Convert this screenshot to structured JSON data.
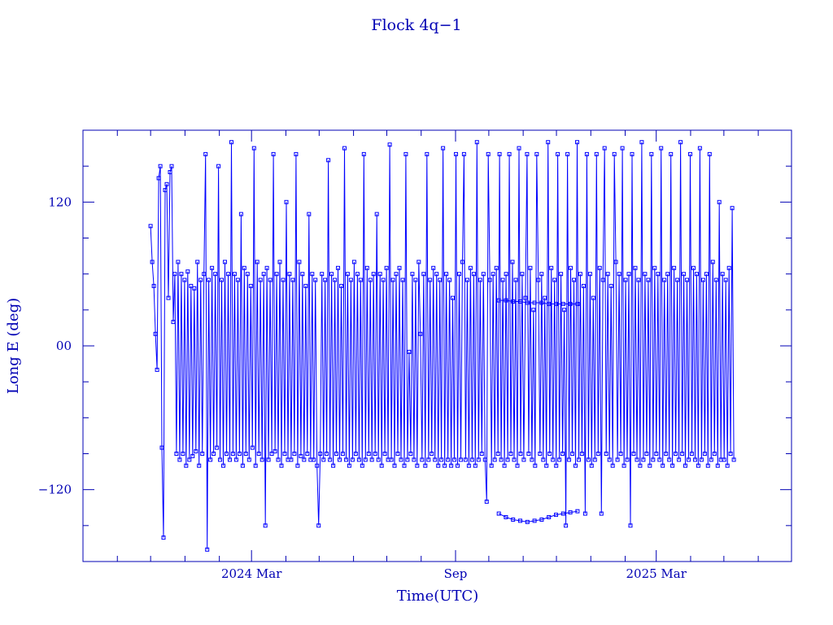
{
  "chart_data": {
    "type": "line",
    "title": "Flock 4q−1",
    "xlabel": "Time(UTC)",
    "ylabel": "Long E (deg)",
    "x_ticks": [
      {
        "date": "2024-03-01",
        "label": "2024 Mar"
      },
      {
        "date": "2024-09-01",
        "label": "Sep"
      },
      {
        "date": "2025-03-01",
        "label": "2025 Mar"
      }
    ],
    "y_ticks": [
      {
        "value": 120,
        "label": "120"
      },
      {
        "value": 0,
        "label": "00"
      },
      {
        "value": -120,
        "label": "−120"
      }
    ],
    "xlim": [
      "2023-10-01",
      "2025-07-01"
    ],
    "ylim": [
      -180,
      180
    ],
    "grid": false,
    "marker": "square",
    "series": [
      {
        "color": "#0000ff",
        "x_start": "2023-12-01",
        "x_end": "2025-05-10",
        "y_samples": [
          100,
          70,
          50,
          10,
          -20,
          140,
          150,
          -85,
          -160,
          130,
          135,
          40,
          145,
          150,
          20,
          60,
          -90,
          70,
          -95,
          60,
          -90,
          55,
          -100,
          62,
          -95,
          50,
          -92,
          48,
          -88,
          70,
          -100,
          55,
          -90,
          60,
          160,
          -170,
          55,
          -95,
          65,
          -90,
          60,
          -85,
          150,
          -95,
          55,
          -100,
          70,
          -90,
          60,
          -95,
          170,
          -90,
          60,
          -95,
          55,
          -90,
          110,
          -100,
          65,
          -90,
          60,
          -95,
          50,
          -85,
          165,
          -100,
          70,
          -90,
          55,
          -95,
          60,
          -150,
          65,
          -95,
          55,
          -90,
          160,
          -88,
          60,
          -95,
          70,
          -100,
          55,
          -90,
          120,
          -95,
          60,
          -95,
          55,
          -90,
          160,
          -100,
          70,
          -92,
          60,
          -95,
          50,
          -90,
          110,
          -95,
          60,
          -95,
          55,
          -100,
          -150,
          -90,
          60,
          -95,
          55,
          -90,
          155,
          -95,
          60,
          -100,
          55,
          -90,
          65,
          -95,
          50,
          -90,
          165,
          -95,
          60,
          -100,
          55,
          -95,
          70,
          -90,
          60,
          -95,
          55,
          -100,
          160,
          -95,
          65,
          -90,
          55,
          -95,
          60,
          -90,
          110,
          -95,
          60,
          -100,
          55,
          -90,
          65,
          -95,
          168,
          -95,
          55,
          -100,
          60,
          -90,
          65,
          -95,
          55,
          -100,
          160,
          -95,
          -5,
          -90,
          60,
          -95,
          55,
          -100,
          70,
          10,
          -95,
          60,
          -100,
          160,
          -95,
          55,
          -90,
          65,
          -95,
          60,
          -100,
          55,
          -95,
          165,
          -100,
          60,
          -95,
          55,
          -100,
          40,
          -95,
          160,
          -100,
          60,
          -95,
          70,
          160,
          -95,
          55,
          -100,
          65,
          -95,
          60,
          -100,
          170,
          -95,
          55,
          -90,
          60,
          -95,
          -130,
          160,
          55,
          -100,
          60,
          -95,
          65,
          -90,
          160,
          -95,
          55,
          -100,
          60,
          -95,
          160,
          -90,
          70,
          -95,
          55,
          -100,
          165,
          -90,
          60,
          -95,
          40,
          160,
          -90,
          65,
          -95,
          30,
          -100,
          160,
          55,
          -90,
          60,
          -95,
          40,
          -100,
          170,
          -90,
          65,
          -95,
          55,
          -100,
          160,
          -95,
          60,
          -90,
          30,
          -150,
          160,
          -95,
          65,
          -90,
          55,
          -100,
          170,
          -95,
          60,
          -90,
          50,
          -140,
          160,
          -95,
          60,
          -100,
          40,
          -95,
          160,
          -90,
          65,
          -140,
          55,
          165,
          -90,
          60,
          -95,
          50,
          -100,
          160,
          70,
          -95,
          60,
          -90,
          165,
          -100,
          55,
          -95,
          60,
          -150,
          160,
          -90,
          65,
          -95,
          55,
          -100,
          170,
          -95,
          60,
          -90,
          55,
          -100,
          160,
          -95,
          65,
          -90,
          60,
          -95,
          165,
          -100,
          55,
          -90,
          60,
          -95,
          160,
          -100,
          65,
          -90,
          55,
          -95,
          170,
          -90,
          60,
          -100,
          55,
          -95,
          160,
          -90,
          65,
          -95,
          60,
          -100,
          165,
          -95,
          55,
          -90,
          60,
          -100,
          160,
          -95,
          70,
          -90,
          55,
          -100,
          120,
          -95,
          60,
          -95,
          55,
          -100,
          65,
          -90,
          115,
          -95
        ]
      },
      {
        "color": "#0000ff",
        "x_start": "2024-10-10",
        "x_end": "2024-12-20",
        "y_samples": [
          -140,
          -143,
          -145,
          -146,
          -147,
          -146,
          -145,
          -143,
          -141,
          -140,
          -139,
          -138
        ]
      },
      {
        "color": "#0000ff",
        "x_start": "2024-10-10",
        "x_end": "2024-12-20",
        "y_samples": [
          38,
          38,
          37,
          37,
          36,
          36,
          36,
          35,
          35,
          35,
          35,
          35
        ]
      }
    ]
  }
}
